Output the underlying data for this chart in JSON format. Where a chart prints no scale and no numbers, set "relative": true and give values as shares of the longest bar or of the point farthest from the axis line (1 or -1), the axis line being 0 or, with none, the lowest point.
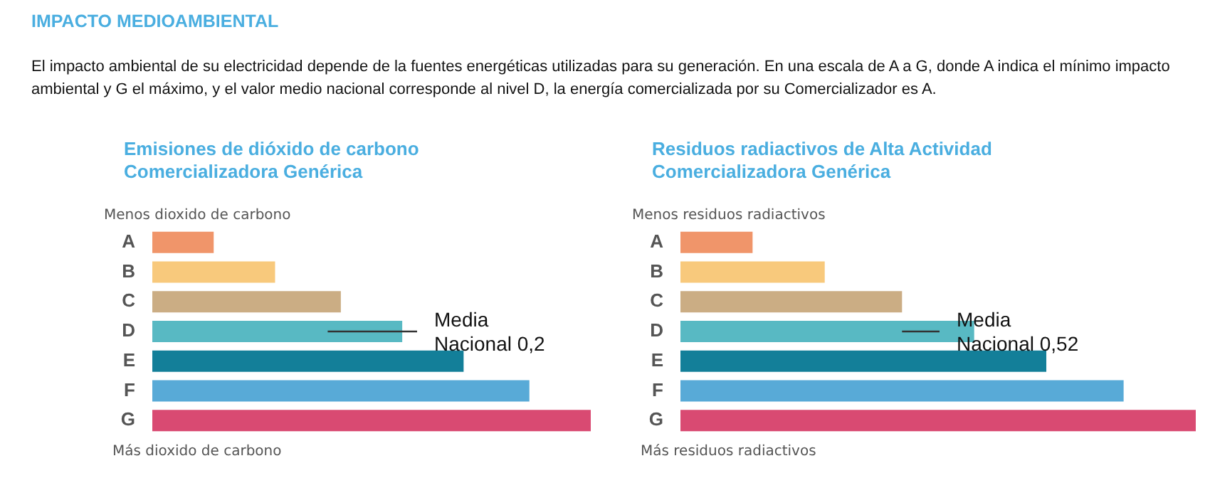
{
  "chart_data": [
    {
      "type": "other",
      "title": "IMPACTO MEDIOAMBIENTAL",
      "annotations": [
        "El impacto ambiental de su electricidad depende de la fuentes energéticas utilizadas para su generación. En una escala de A a G, donde A indica el mínimo impacto ambiental y G el máximo, y el valor medio nacional corresponde al nivel D, la energía comercializada por su Comercializador es A."
      ]
    },
    {
      "type": "bar",
      "orientation": "horizontal",
      "relative": true,
      "title": "Emisiones de dióxido de carbono",
      "subtitle": "Comercializadora Genérica",
      "categories": [
        "A",
        "B",
        "C",
        "D",
        "E",
        "F",
        "G"
      ],
      "values": [
        0.14,
        0.28,
        0.43,
        0.57,
        0.71,
        0.86,
        1
      ],
      "colors": [
        "#f0956a",
        "#f8c97c",
        "#cbad84",
        "#58b9c3",
        "#137f99",
        "#58aad7",
        "#d94a72"
      ],
      "annotations": [
        "Menos dioxido de carbono",
        "Más dioxido de carbono",
        "Media Nacional 0,2"
      ]
    },
    {
      "type": "bar",
      "orientation": "horizontal",
      "relative": true,
      "title": "Residuos radiactivos de Alta Actividad",
      "subtitle": "Comercializadora Genérica",
      "categories": [
        "A",
        "B",
        "C",
        "D",
        "E",
        "F",
        "G"
      ],
      "values": [
        0.14,
        0.28,
        0.43,
        0.57,
        0.71,
        0.86,
        1
      ],
      "colors": [
        "#f0956a",
        "#f8c97c",
        "#cbad84",
        "#58b9c3",
        "#137f99",
        "#58aad7",
        "#d94a72"
      ],
      "annotations": [
        "Menos residuos radiactivos",
        "Más residuos radiactivos",
        "Media Nacional 0,52"
      ]
    }
  ]
}
